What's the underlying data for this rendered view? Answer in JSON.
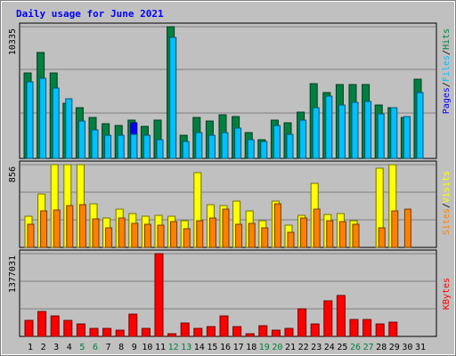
{
  "chart_data": [
    {
      "type": "bar",
      "title": "Daily usage for June 2021",
      "categories": [
        "1",
        "2",
        "3",
        "4",
        "5",
        "6",
        "7",
        "8",
        "9",
        "10",
        "11",
        "12",
        "13",
        "14",
        "15",
        "16",
        "17",
        "18",
        "19",
        "20",
        "21",
        "22",
        "23",
        "24",
        "25",
        "26",
        "27",
        "28",
        "29",
        "30",
        "31"
      ],
      "weekend_days": [
        5,
        6,
        12,
        13,
        19,
        20,
        26,
        27
      ],
      "ylabel_max": "10335",
      "ylim": [
        0,
        10335
      ],
      "series": [
        {
          "name": "Hits",
          "color": "#008040",
          "values": [
            6700,
            8300,
            6700,
            4300,
            4000,
            3200,
            2700,
            2600,
            3000,
            2500,
            3000,
            10335,
            1800,
            3200,
            2900,
            3400,
            3300,
            2000,
            1500,
            3000,
            2800,
            3600,
            5900,
            5200,
            5800,
            5800,
            5800,
            4200,
            4000,
            3200,
            6200
          ]
        },
        {
          "name": "Pages",
          "color": "#0000ff",
          "values": [
            0,
            0,
            0,
            0,
            0,
            0,
            0,
            0,
            2800,
            0,
            0,
            9500,
            0,
            0,
            0,
            0,
            0,
            0,
            0,
            0,
            0,
            0,
            0,
            0,
            0,
            0,
            0,
            0,
            0,
            0,
            0
          ]
        },
        {
          "name": "Files",
          "color": "#00c0ff",
          "values": [
            6000,
            6300,
            5500,
            4700,
            2900,
            2200,
            1800,
            1800,
            1900,
            1800,
            1500,
            9500,
            1300,
            2000,
            1800,
            2000,
            2400,
            1500,
            1300,
            2600,
            1900,
            3000,
            4000,
            4900,
            4200,
            4400,
            4500,
            3500,
            4000,
            3300,
            5200
          ]
        }
      ]
    },
    {
      "type": "bar",
      "ylabel_max": "856",
      "ylim": [
        0,
        856
      ],
      "series": [
        {
          "name": "Visits",
          "color": "#ffff00",
          "values": [
            320,
            550,
            856,
            856,
            856,
            450,
            300,
            400,
            350,
            320,
            330,
            320,
            280,
            770,
            440,
            430,
            480,
            380,
            280,
            480,
            230,
            330,
            660,
            340,
            350,
            280,
            0,
            820,
            856,
            0,
            0
          ]
        },
        {
          "name": "Sites",
          "color": "#ff8000",
          "values": [
            240,
            380,
            390,
            430,
            440,
            290,
            200,
            300,
            250,
            240,
            230,
            270,
            190,
            280,
            300,
            400,
            240,
            250,
            200,
            450,
            160,
            300,
            400,
            280,
            270,
            240,
            0,
            200,
            380,
            400,
            0
          ]
        }
      ]
    },
    {
      "type": "bar",
      "ylabel_max": "1377031",
      "ylim": [
        0,
        1377031
      ],
      "series": [
        {
          "name": "KBytes",
          "color": "#ff0000",
          "values": [
            270000,
            420000,
            340000,
            260000,
            200000,
            140000,
            140000,
            110000,
            370000,
            140000,
            1377031,
            50000,
            220000,
            140000,
            160000,
            340000,
            170000,
            50000,
            180000,
            100000,
            140000,
            460000,
            210000,
            590000,
            680000,
            280000,
            280000,
            200000,
            240000,
            0,
            0
          ]
        }
      ]
    }
  ],
  "side_labels": {
    "top": [
      "Pages",
      "/",
      "Files",
      "/",
      "Hits"
    ],
    "mid": [
      "Sites",
      "/",
      "Visits"
    ],
    "bot": [
      "KBytes"
    ]
  }
}
